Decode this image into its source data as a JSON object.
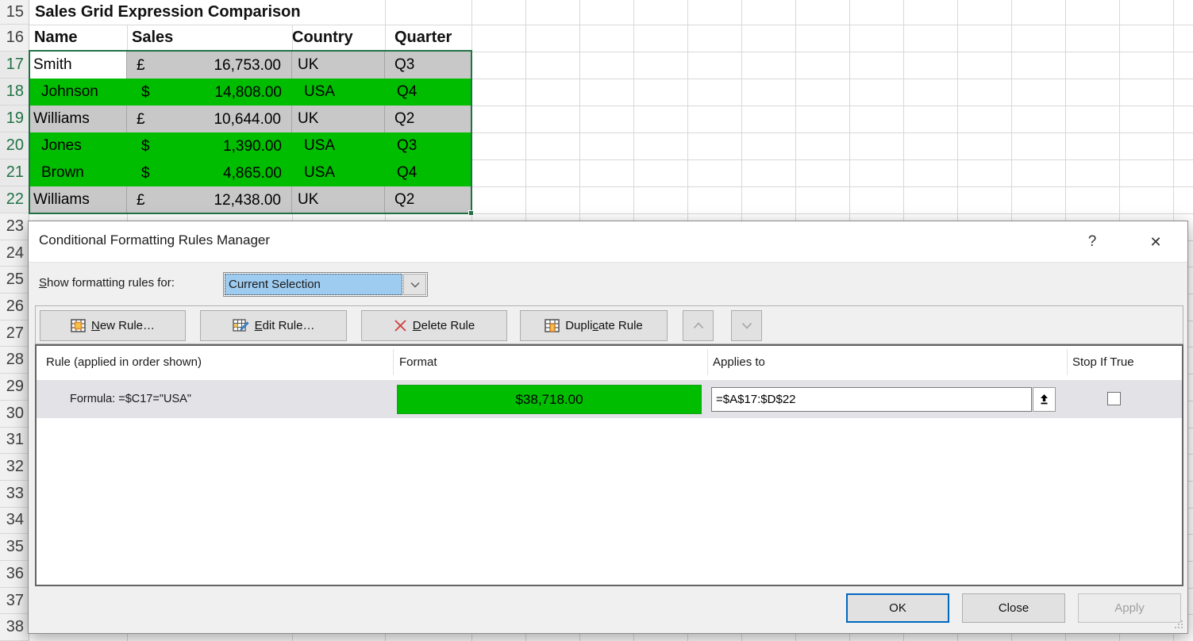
{
  "spreadsheet": {
    "left_rows": [
      {
        "n": "15",
        "sel": false
      },
      {
        "n": "16",
        "sel": false
      },
      {
        "n": "17",
        "sel": true
      },
      {
        "n": "18",
        "sel": true
      },
      {
        "n": "19",
        "sel": true
      },
      {
        "n": "20",
        "sel": true
      },
      {
        "n": "21",
        "sel": true
      },
      {
        "n": "22",
        "sel": true
      },
      {
        "n": "23",
        "sel": false
      },
      {
        "n": "24",
        "sel": false
      },
      {
        "n": "25",
        "sel": false
      },
      {
        "n": "26",
        "sel": false
      },
      {
        "n": "27",
        "sel": false
      },
      {
        "n": "28",
        "sel": false
      },
      {
        "n": "29",
        "sel": false
      },
      {
        "n": "30",
        "sel": false
      },
      {
        "n": "31",
        "sel": false
      },
      {
        "n": "32",
        "sel": false
      },
      {
        "n": "33",
        "sel": false
      },
      {
        "n": "34",
        "sel": false
      },
      {
        "n": "35",
        "sel": false
      },
      {
        "n": "36",
        "sel": false
      },
      {
        "n": "37",
        "sel": false
      },
      {
        "n": "38",
        "sel": false
      }
    ],
    "title": "Sales Grid Expression Comparison",
    "headers": [
      "Name",
      "Sales",
      "Country",
      "Quarter"
    ],
    "rows": [
      {
        "name": "Smith",
        "currency": "£",
        "amount": "16,753.00",
        "country": "UK",
        "quarter": "Q3",
        "fill": "gray",
        "active": true
      },
      {
        "name": "Johnson",
        "currency": "$",
        "amount": "14,808.00",
        "country": "USA",
        "quarter": "Q4",
        "fill": "green",
        "active": false
      },
      {
        "name": "Williams",
        "currency": "£",
        "amount": "10,644.00",
        "country": "UK",
        "quarter": "Q2",
        "fill": "gray",
        "active": false
      },
      {
        "name": "Jones",
        "currency": "$",
        "amount": "1,390.00",
        "country": "USA",
        "quarter": "Q3",
        "fill": "green",
        "active": false
      },
      {
        "name": "Brown",
        "currency": "$",
        "amount": "4,865.00",
        "country": "USA",
        "quarter": "Q4",
        "fill": "green",
        "active": false
      },
      {
        "name": "Williams",
        "currency": "£",
        "amount": "12,438.00",
        "country": "UK",
        "quarter": "Q2",
        "fill": "gray",
        "active": false
      }
    ],
    "colors": {
      "green_fill": "#00bd00",
      "gray_fill": "#c8c8c8",
      "selection_border": "#217346"
    }
  },
  "dialog": {
    "title": "Conditional Formatting Rules Manager",
    "help_label": "?",
    "close_label": "✕",
    "show_rules_label": {
      "text": "Show formatting rules for:",
      "accel": "S"
    },
    "dropdown": {
      "value": "Current Selection",
      "highlight_color": "#9ecbf0"
    },
    "toolbar": {
      "buttons": [
        {
          "label": "New Rule…",
          "accel": "N",
          "icon": "new-rule-grid-icon"
        },
        {
          "label": "Edit Rule…",
          "accel": "E",
          "icon": "edit-rule-pencil-icon"
        },
        {
          "label": "Delete Rule",
          "accel": "D",
          "icon": "delete-red-x-icon"
        },
        {
          "label": "Duplicate Rule",
          "accel": "c",
          "icon": "duplicate-rule-grid-icon"
        }
      ],
      "move_up_icon": "chevron-up-icon",
      "move_down_icon": "chevron-down-icon"
    },
    "list": {
      "headers": [
        "Rule (applied in order shown)",
        "Format",
        "Applies to",
        "Stop If True"
      ],
      "rule": {
        "rule_text": "Formula: =$C17=\"USA\"",
        "format_preview_text": "$38,718.00",
        "format_preview_fill": "#00bd00",
        "applies_to_value": "=$A$17:$D$22",
        "stop_if_true_checked": false
      }
    },
    "footer": {
      "ok_label": "OK",
      "close_label": "Close",
      "apply_label": "Apply"
    }
  }
}
